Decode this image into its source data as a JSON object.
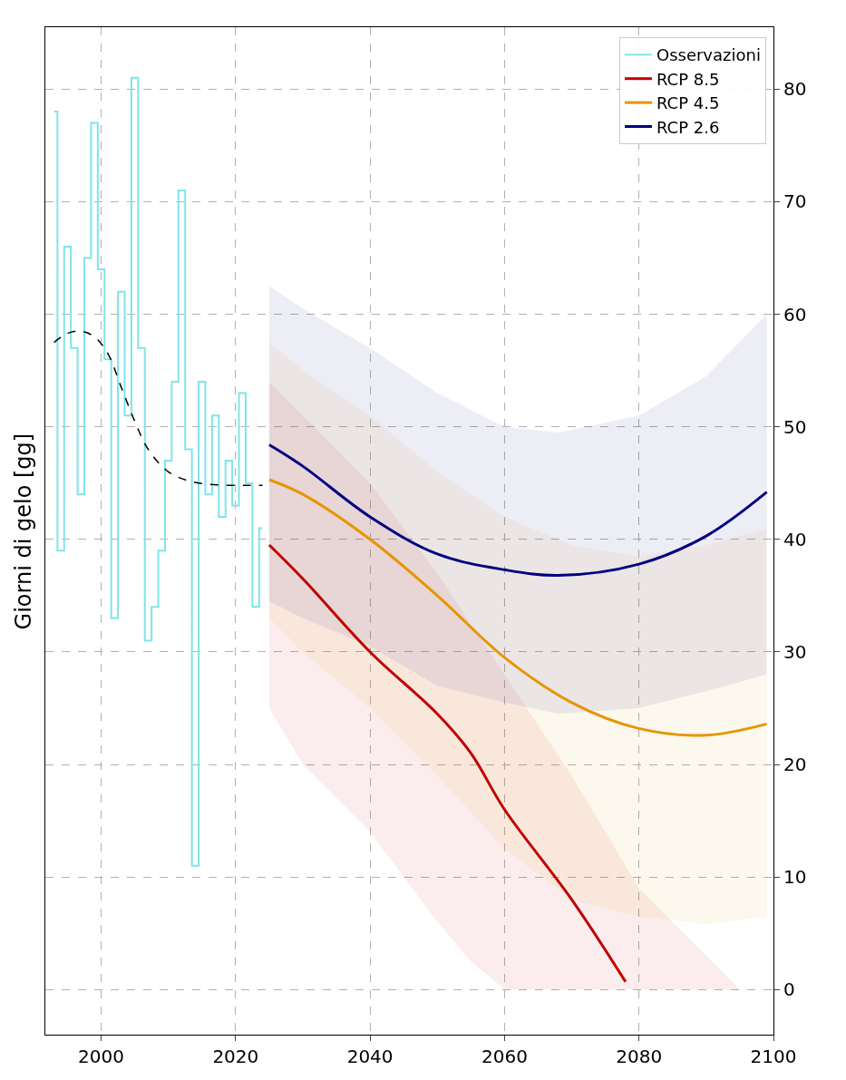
{
  "chart_data": {
    "type": "line",
    "ylabel": "Giorni di gelo [gg]",
    "xlim": [
      1991.7,
      2100
    ],
    "xticks": [
      2000,
      2020,
      2040,
      2060,
      2080,
      2100
    ],
    "ylim": [
      -4,
      85.5
    ],
    "yticks": [
      0,
      10,
      20,
      30,
      40,
      50,
      60,
      70,
      80
    ],
    "grid": true,
    "legend": "top right",
    "series": [
      {
        "name": "Osservazioni",
        "type": "step",
        "color": "#7fe5e8",
        "x": [
          1993,
          1994,
          1995,
          1996,
          1997,
          1998,
          1999,
          2000,
          2001,
          2002,
          2003,
          2004,
          2005,
          2006,
          2007,
          2008,
          2009,
          2010,
          2011,
          2012,
          2013,
          2014,
          2015,
          2016,
          2017,
          2018,
          2019,
          2020,
          2021,
          2022,
          2023,
          2024
        ],
        "values": [
          78,
          39,
          66,
          57,
          44,
          65,
          77,
          64,
          56,
          33,
          62,
          51,
          81,
          57,
          31,
          34,
          39,
          47,
          54,
          71,
          48,
          11,
          54,
          44,
          51,
          42,
          47,
          43,
          53,
          45,
          34,
          41
        ]
      },
      {
        "color": "#000000",
        "line_style": "dashed",
        "x": [
          1993,
          1995,
          1997,
          1999,
          2001,
          2003,
          2005,
          2007,
          2010,
          2013,
          2016,
          2019,
          2022,
          2024
        ],
        "values": [
          57.5,
          58.3,
          58.5,
          58,
          56.5,
          53.5,
          50.5,
          48,
          46,
          45.2,
          44.9,
          44.8,
          44.8,
          44.8
        ]
      },
      {
        "name": "RCP 8.5",
        "color": "#c00000",
        "x": [
          2025,
          2030,
          2040,
          2050,
          2055,
          2060,
          2070,
          2078,
          2080,
          2090,
          2095
        ],
        "values": [
          39.5,
          36.5,
          30,
          24.5,
          21,
          16,
          8,
          0.7,
          null,
          null,
          null
        ],
        "lower": [
          25,
          20,
          14,
          6,
          2.5,
          0,
          0,
          0,
          0,
          0,
          0
        ],
        "upper": [
          54,
          51,
          45,
          37,
          32.5,
          28,
          19,
          11,
          9,
          3,
          0
        ]
      },
      {
        "name": "RCP 4.5",
        "color": "#e69500",
        "x": [
          2025,
          2030,
          2040,
          2050,
          2060,
          2070,
          2080,
          2090,
          2099
        ],
        "values": [
          45.3,
          44,
          40,
          35,
          29.5,
          25.5,
          23.2,
          22.6,
          23.6
        ],
        "lower": [
          33,
          30,
          25,
          19,
          12.5,
          8,
          6.5,
          5.8,
          6.5
        ],
        "upper": [
          57.5,
          55,
          51,
          46,
          42,
          39.5,
          38.5,
          39.5,
          41
        ]
      },
      {
        "name": "RCP 2.6",
        "color": "#000080",
        "x": [
          2025,
          2030,
          2040,
          2050,
          2060,
          2068,
          2080,
          2090,
          2099
        ],
        "values": [
          48.4,
          46.5,
          42,
          38.7,
          37.3,
          36.8,
          37.8,
          40.3,
          44.2
        ],
        "lower": [
          34.5,
          33,
          30.5,
          27,
          25.5,
          24.5,
          25,
          26.5,
          28
        ],
        "upper": [
          62.5,
          60.5,
          57,
          53,
          50,
          49.5,
          51,
          54.5,
          60
        ]
      }
    ]
  }
}
